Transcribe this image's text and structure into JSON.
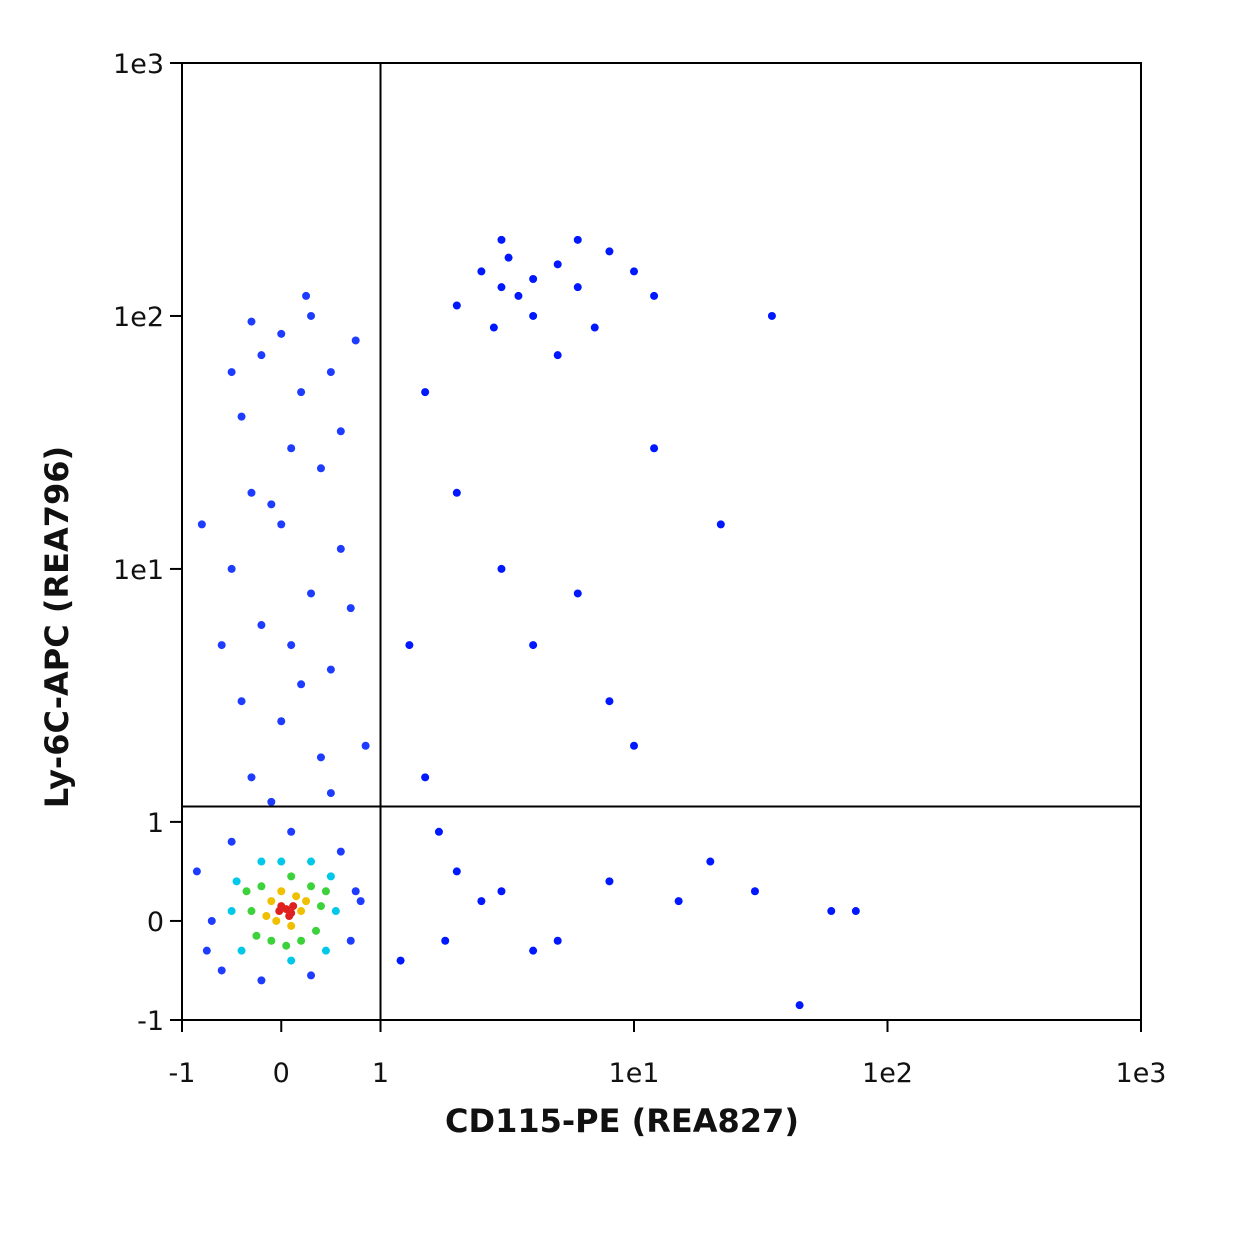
{
  "chart_data": {
    "type": "scatter",
    "xlabel": "CD115-PE (REA827)",
    "ylabel": "Ly-6C-APC (REA796)",
    "xlim": [
      -1,
      1000
    ],
    "ylim": [
      -1,
      1000
    ],
    "xticks": [
      -1,
      0,
      1,
      {
        "value": 10,
        "label": "1e1"
      },
      {
        "value": 100,
        "label": "1e2"
      },
      {
        "value": 1000,
        "label": "1e3"
      }
    ],
    "yticks": [
      -1,
      0,
      1,
      {
        "value": 10,
        "label": "1e1"
      },
      {
        "value": 100,
        "label": "1e2"
      },
      {
        "value": 1000,
        "label": "1e3"
      }
    ],
    "quadrant": {
      "x": 1,
      "y": 1.15
    },
    "series": [
      {
        "color": "#0018ff",
        "x": [
          2.5,
          3,
          3.5,
          4,
          5,
          6,
          8,
          10,
          4,
          3,
          2,
          7,
          5,
          12,
          2.8,
          6,
          3.2,
          1.5,
          2,
          3,
          4,
          6,
          8,
          1.5,
          2,
          3,
          5,
          8,
          15,
          30,
          60,
          75,
          45,
          22,
          35,
          12,
          1.2,
          1.8,
          2.5,
          4,
          10,
          20,
          1.3,
          1.7
        ],
        "y": [
          150,
          130,
          120,
          140,
          160,
          130,
          180,
          150,
          100,
          200,
          110,
          90,
          70,
          120,
          90,
          200,
          170,
          50,
          20,
          10,
          5,
          8,
          3,
          1.5,
          0.5,
          0.3,
          -0.2,
          0.4,
          0.2,
          0.3,
          0.1,
          0.1,
          -0.85,
          15,
          100,
          30,
          -0.4,
          -0.2,
          0.2,
          -0.3,
          2,
          0.6,
          5,
          0.9
        ]
      },
      {
        "color": "#1e3cff",
        "x": [
          -0.7,
          -0.75,
          0.7,
          0.75,
          -0.6,
          0.3,
          -0.2,
          0.6,
          -0.5,
          0.1,
          -0.3,
          0.4,
          0,
          -0.4,
          0.5,
          0.1,
          -0.2,
          0.3,
          -0.5,
          0.6,
          0,
          -0.3,
          0.4,
          0.1,
          -0.4,
          0.2,
          0.5,
          -0.2,
          0,
          0.3,
          -0.1,
          0.2,
          -0.6,
          0.7,
          -0.1,
          0.6,
          -0.5,
          0.25,
          -0.3,
          0.5,
          0.8,
          -0.85,
          0.85,
          -0.8,
          0.75
        ],
        "y": [
          0,
          -0.3,
          -0.2,
          0.3,
          -0.5,
          -0.55,
          -0.6,
          0.7,
          0.8,
          0.9,
          1.5,
          1.8,
          2.5,
          3,
          4,
          5,
          6,
          8,
          10,
          12,
          15,
          20,
          25,
          30,
          40,
          50,
          60,
          70,
          85,
          100,
          1.2,
          3.5,
          5,
          7,
          18,
          35,
          60,
          120,
          95,
          1.3,
          0.2,
          0.5,
          2,
          15,
          80
        ]
      },
      {
        "color": "#00c8e8",
        "x": [
          -0.5,
          0.55,
          -0.45,
          0.5,
          0,
          -0.4,
          0.45,
          0.1,
          -0.2,
          0.3
        ],
        "y": [
          0.1,
          0.1,
          0.4,
          0.45,
          0.6,
          -0.3,
          -0.3,
          -0.4,
          0.6,
          0.6
        ]
      },
      {
        "color": "#3cd23c",
        "x": [
          -0.3,
          0.4,
          0.3,
          -0.2,
          0.1,
          -0.25,
          0.35,
          0.05,
          0.45,
          -0.35,
          0.2,
          -0.1
        ],
        "y": [
          0.1,
          0.15,
          0.35,
          0.35,
          0.45,
          -0.15,
          -0.1,
          -0.25,
          0.3,
          0.3,
          -0.2,
          -0.2
        ]
      },
      {
        "color": "#f0c000",
        "x": [
          -0.1,
          0.2,
          0.15,
          -0.05,
          0.25,
          0,
          0.1,
          -0.15
        ],
        "y": [
          0.2,
          0.1,
          0.25,
          0,
          0.2,
          0.3,
          -0.05,
          0.05
        ]
      },
      {
        "color": "#e02020",
        "x": [
          0.05,
          0.1,
          0,
          0.12,
          0.08,
          -0.02
        ],
        "y": [
          0.12,
          0.08,
          0.15,
          0.15,
          0.05,
          0.1
        ]
      }
    ]
  }
}
